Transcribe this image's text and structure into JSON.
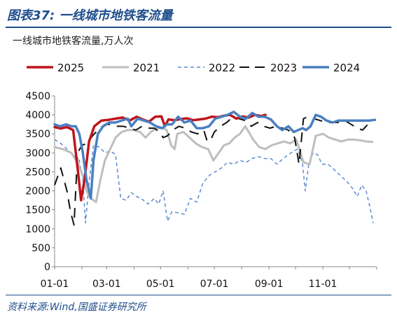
{
  "figure": {
    "label": "图表37:",
    "title": "一线城市地铁客流量",
    "source": "资料来源:Wind,国盛证券研究所"
  },
  "chart_data": {
    "type": "line",
    "subtitle": "一线城市地铁客流量,万人次",
    "ylim": [
      0,
      4500
    ],
    "yticks": [
      "0",
      "500",
      "1000",
      "1500",
      "2000",
      "2500",
      "3000",
      "3500",
      "4000",
      "4500"
    ],
    "xlim": [
      1,
      366
    ],
    "xticks": [
      {
        "label": "01-01",
        "day": 1
      },
      {
        "label": "03-01",
        "day": 60
      },
      {
        "label": "05-01",
        "day": 121
      },
      {
        "label": "07-01",
        "day": 182
      },
      {
        "label": "09-01",
        "day": 244
      },
      {
        "label": "11-01",
        "day": 305
      }
    ],
    "legend_position": "top",
    "grid": false,
    "series": [
      {
        "name": "2025",
        "color": "#c0141c",
        "style": "solid",
        "width": 3.5,
        "points": [
          [
            1,
            3680
          ],
          [
            8,
            3640
          ],
          [
            15,
            3680
          ],
          [
            22,
            3600
          ],
          [
            27,
            2600
          ],
          [
            31,
            1750
          ],
          [
            35,
            2300
          ],
          [
            40,
            3300
          ],
          [
            46,
            3700
          ],
          [
            54,
            3850
          ],
          [
            62,
            3870
          ],
          [
            70,
            3900
          ],
          [
            78,
            3930
          ],
          [
            86,
            3850
          ],
          [
            94,
            3950
          ],
          [
            102,
            3870
          ],
          [
            108,
            3820
          ],
          [
            115,
            3950
          ],
          [
            122,
            3960
          ],
          [
            126,
            3700
          ],
          [
            130,
            3880
          ],
          [
            137,
            3860
          ],
          [
            144,
            3890
          ],
          [
            151,
            3910
          ],
          [
            158,
            3860
          ],
          [
            165,
            3880
          ],
          [
            172,
            3900
          ],
          [
            179,
            3950
          ],
          [
            186,
            3940
          ],
          [
            193,
            3980
          ],
          [
            200,
            4000
          ],
          [
            207,
            3900
          ],
          [
            214,
            3960
          ],
          [
            221,
            3930
          ],
          [
            228,
            4000
          ],
          [
            235,
            3970
          ],
          [
            240,
            4000
          ]
        ]
      },
      {
        "name": "2021",
        "color": "#bebebe",
        "style": "solid",
        "width": 3,
        "points": [
          [
            1,
            3150
          ],
          [
            10,
            3100
          ],
          [
            20,
            3000
          ],
          [
            28,
            2700
          ],
          [
            33,
            2400
          ],
          [
            37,
            2000
          ],
          [
            42,
            1800
          ],
          [
            48,
            1700
          ],
          [
            53,
            2300
          ],
          [
            58,
            2800
          ],
          [
            64,
            3100
          ],
          [
            70,
            3400
          ],
          [
            77,
            3550
          ],
          [
            84,
            3600
          ],
          [
            91,
            3600
          ],
          [
            98,
            3550
          ],
          [
            104,
            3400
          ],
          [
            110,
            3550
          ],
          [
            117,
            3650
          ],
          [
            124,
            3650
          ],
          [
            128,
            3600
          ],
          [
            133,
            3200
          ],
          [
            137,
            3100
          ],
          [
            140,
            3500
          ],
          [
            147,
            3550
          ],
          [
            154,
            3400
          ],
          [
            161,
            3250
          ],
          [
            168,
            3150
          ],
          [
            175,
            3100
          ],
          [
            181,
            2800
          ],
          [
            187,
            3000
          ],
          [
            193,
            3200
          ],
          [
            199,
            3250
          ],
          [
            205,
            3400
          ],
          [
            211,
            3500
          ],
          [
            217,
            3700
          ],
          [
            221,
            3550
          ],
          [
            226,
            3350
          ],
          [
            233,
            3150
          ],
          [
            240,
            3100
          ],
          [
            247,
            3200
          ],
          [
            254,
            3250
          ],
          [
            261,
            3300
          ],
          [
            268,
            3250
          ],
          [
            275,
            3350
          ],
          [
            283,
            2750
          ],
          [
            290,
            2700
          ],
          [
            297,
            3450
          ],
          [
            305,
            3500
          ],
          [
            312,
            3400
          ],
          [
            319,
            3350
          ],
          [
            326,
            3300
          ],
          [
            333,
            3350
          ],
          [
            340,
            3350
          ],
          [
            347,
            3330
          ],
          [
            354,
            3300
          ],
          [
            361,
            3290
          ]
        ]
      },
      {
        "name": "2022",
        "color": "#5b8bd0",
        "style": "dashed",
        "width": 1.5,
        "points": [
          [
            1,
            3350
          ],
          [
            8,
            3250
          ],
          [
            15,
            3100
          ],
          [
            22,
            2950
          ],
          [
            29,
            2800
          ],
          [
            33,
            2300
          ],
          [
            36,
            1150
          ],
          [
            40,
            2200
          ],
          [
            45,
            3200
          ],
          [
            52,
            3150
          ],
          [
            58,
            3000
          ],
          [
            64,
            3050
          ],
          [
            70,
            2950
          ],
          [
            76,
            1800
          ],
          [
            82,
            1750
          ],
          [
            88,
            1950
          ],
          [
            94,
            1850
          ],
          [
            100,
            1780
          ],
          [
            107,
            1650
          ],
          [
            114,
            1800
          ],
          [
            119,
            1650
          ],
          [
            124,
            2000
          ],
          [
            129,
            1200
          ],
          [
            134,
            1450
          ],
          [
            141,
            1420
          ],
          [
            148,
            1380
          ],
          [
            155,
            1800
          ],
          [
            162,
            1700
          ],
          [
            169,
            2200
          ],
          [
            176,
            2400
          ],
          [
            183,
            2500
          ],
          [
            190,
            2600
          ],
          [
            197,
            2750
          ],
          [
            204,
            2700
          ],
          [
            211,
            2800
          ],
          [
            218,
            2750
          ],
          [
            225,
            2850
          ],
          [
            232,
            2900
          ],
          [
            239,
            2850
          ],
          [
            246,
            2850
          ],
          [
            253,
            2700
          ],
          [
            260,
            2850
          ],
          [
            266,
            2950
          ],
          [
            272,
            3050
          ],
          [
            277,
            3100
          ],
          [
            282,
            2700
          ],
          [
            285,
            2000
          ],
          [
            289,
            2700
          ],
          [
            294,
            3000
          ],
          [
            299,
            2950
          ],
          [
            304,
            2700
          ],
          [
            311,
            2700
          ],
          [
            318,
            2550
          ],
          [
            325,
            2400
          ],
          [
            332,
            2250
          ],
          [
            339,
            2050
          ],
          [
            344,
            1850
          ],
          [
            349,
            2150
          ],
          [
            354,
            2000
          ],
          [
            358,
            1600
          ],
          [
            362,
            1150
          ]
        ]
      },
      {
        "name": "2023",
        "color": "#111111",
        "style": "dashed",
        "width": 2,
        "points": [
          [
            1,
            2150
          ],
          [
            8,
            2600
          ],
          [
            15,
            2000
          ],
          [
            19,
            1450
          ],
          [
            23,
            1100
          ],
          [
            27,
            3000
          ],
          [
            32,
            3200
          ],
          [
            38,
            3250
          ],
          [
            44,
            3450
          ],
          [
            50,
            3600
          ],
          [
            58,
            3750
          ],
          [
            65,
            3750
          ],
          [
            72,
            3700
          ],
          [
            79,
            3700
          ],
          [
            86,
            3650
          ],
          [
            93,
            3600
          ],
          [
            100,
            3700
          ],
          [
            107,
            3650
          ],
          [
            114,
            3650
          ],
          [
            120,
            3550
          ],
          [
            124,
            3400
          ],
          [
            129,
            3450
          ],
          [
            135,
            3600
          ],
          [
            142,
            3700
          ],
          [
            149,
            3650
          ],
          [
            156,
            3550
          ],
          [
            163,
            3500
          ],
          [
            170,
            3600
          ],
          [
            174,
            3300
          ],
          [
            178,
            3350
          ],
          [
            182,
            3550
          ],
          [
            189,
            3700
          ],
          [
            196,
            3800
          ],
          [
            203,
            3950
          ],
          [
            210,
            3900
          ],
          [
            217,
            3850
          ],
          [
            224,
            3700
          ],
          [
            231,
            3800
          ],
          [
            238,
            3700
          ],
          [
            245,
            3650
          ],
          [
            252,
            3700
          ],
          [
            259,
            3650
          ],
          [
            266,
            3600
          ],
          [
            273,
            3400
          ],
          [
            278,
            2700
          ],
          [
            283,
            3900
          ],
          [
            288,
            3950
          ],
          [
            295,
            3900
          ],
          [
            302,
            3850
          ],
          [
            309,
            3800
          ],
          [
            316,
            3800
          ],
          [
            323,
            3800
          ],
          [
            330,
            3850
          ],
          [
            337,
            3750
          ],
          [
            344,
            3650
          ],
          [
            350,
            3600
          ],
          [
            356,
            3750
          ],
          [
            362,
            3800
          ]
        ]
      },
      {
        "name": "2024",
        "color": "#4a7fc1",
        "style": "solid",
        "width": 3.5,
        "points": [
          [
            1,
            3750
          ],
          [
            7,
            3700
          ],
          [
            14,
            3750
          ],
          [
            20,
            3700
          ],
          [
            25,
            3700
          ],
          [
            29,
            3500
          ],
          [
            33,
            3000
          ],
          [
            37,
            2300
          ],
          [
            42,
            1800
          ],
          [
            45,
            2800
          ],
          [
            50,
            3500
          ],
          [
            56,
            3700
          ],
          [
            63,
            3800
          ],
          [
            70,
            3800
          ],
          [
            77,
            3850
          ],
          [
            84,
            3900
          ],
          [
            88,
            3700
          ],
          [
            95,
            3900
          ],
          [
            102,
            3850
          ],
          [
            109,
            3800
          ],
          [
            116,
            3700
          ],
          [
            123,
            3650
          ],
          [
            128,
            3750
          ],
          [
            134,
            3750
          ],
          [
            141,
            3950
          ],
          [
            148,
            3800
          ],
          [
            155,
            3850
          ],
          [
            162,
            3650
          ],
          [
            169,
            3650
          ],
          [
            176,
            3700
          ],
          [
            183,
            3900
          ],
          [
            190,
            3950
          ],
          [
            197,
            4000
          ],
          [
            204,
            4080
          ],
          [
            211,
            3950
          ],
          [
            218,
            3900
          ],
          [
            225,
            4050
          ],
          [
            232,
            3950
          ],
          [
            239,
            3950
          ],
          [
            246,
            3880
          ],
          [
            253,
            3700
          ],
          [
            259,
            3600
          ],
          [
            266,
            3700
          ],
          [
            272,
            3550
          ],
          [
            277,
            3600
          ],
          [
            282,
            3650
          ],
          [
            286,
            3600
          ],
          [
            291,
            3700
          ],
          [
            297,
            4000
          ],
          [
            303,
            3950
          ],
          [
            309,
            3850
          ],
          [
            316,
            3800
          ],
          [
            323,
            3850
          ],
          [
            330,
            3850
          ],
          [
            337,
            3850
          ],
          [
            344,
            3850
          ],
          [
            351,
            3850
          ],
          [
            358,
            3850
          ],
          [
            364,
            3870
          ]
        ]
      }
    ]
  }
}
